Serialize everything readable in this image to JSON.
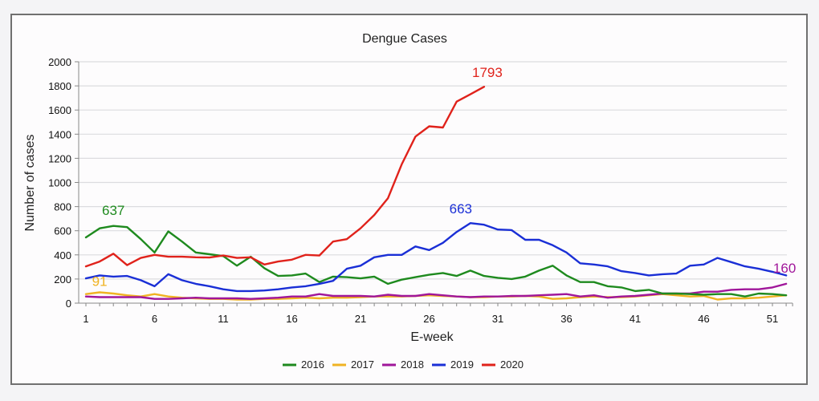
{
  "chart_data": {
    "type": "line",
    "title": "Dengue Cases",
    "xlabel": "E-week",
    "ylabel": "Number of cases",
    "ylim": [
      0,
      2000
    ],
    "yticks": [
      0,
      200,
      400,
      600,
      800,
      1000,
      1200,
      1400,
      1600,
      1800,
      2000
    ],
    "xlim": [
      1,
      52
    ],
    "xtick_labels": [
      {
        "week": 1,
        "label": "1"
      },
      {
        "week": 6,
        "label": "6"
      },
      {
        "week": 11,
        "label": "11"
      },
      {
        "week": 16,
        "label": "16"
      },
      {
        "week": 21,
        "label": "21"
      },
      {
        "week": 26,
        "label": "26"
      },
      {
        "week": 31,
        "label": "31"
      },
      {
        "week": 36,
        "label": "36"
      },
      {
        "week": 41,
        "label": "41"
      },
      {
        "week": 46,
        "label": "46"
      },
      {
        "week": 51,
        "label": "51"
      }
    ],
    "grid": true,
    "legend_position": "bottom",
    "series": [
      {
        "name": "2016",
        "color": "#1e8a1e",
        "start_week": 1,
        "values": [
          545,
          620,
          640,
          630,
          530,
          420,
          595,
          510,
          420,
          405,
          390,
          310,
          385,
          290,
          225,
          230,
          245,
          175,
          220,
          215,
          205,
          220,
          160,
          195,
          215,
          235,
          250,
          225,
          270,
          225,
          210,
          200,
          220,
          270,
          310,
          230,
          175,
          175,
          140,
          130,
          100,
          110,
          80,
          80,
          75,
          70,
          75,
          75,
          55,
          80,
          75,
          65
        ],
        "annotation": {
          "week": 3,
          "value": 637,
          "text": "637"
        }
      },
      {
        "name": "2017",
        "color": "#f0b323",
        "start_week": 1,
        "values": [
          75,
          90,
          80,
          65,
          55,
          75,
          55,
          45,
          40,
          35,
          35,
          30,
          30,
          35,
          35,
          40,
          45,
          40,
          45,
          45,
          50,
          55,
          55,
          55,
          60,
          65,
          60,
          55,
          50,
          50,
          55,
          55,
          60,
          55,
          35,
          40,
          50,
          55,
          50,
          50,
          55,
          65,
          75,
          65,
          55,
          60,
          30,
          40,
          40,
          45,
          55,
          65
        ],
        "annotation": {
          "week": 2,
          "value": 91,
          "text": "91"
        }
      },
      {
        "name": "2018",
        "color": "#a0169a",
        "start_week": 1,
        "values": [
          55,
          50,
          50,
          50,
          50,
          35,
          35,
          40,
          45,
          40,
          40,
          40,
          35,
          40,
          45,
          55,
          55,
          75,
          60,
          60,
          60,
          55,
          70,
          60,
          60,
          75,
          65,
          55,
          50,
          55,
          55,
          60,
          60,
          65,
          70,
          75,
          55,
          65,
          45,
          55,
          60,
          70,
          80,
          80,
          80,
          95,
          95,
          110,
          115,
          115,
          130,
          160
        ],
        "annotation": {
          "week": 52,
          "value": 160,
          "text": "160"
        }
      },
      {
        "name": "2019",
        "color": "#1a2fd6",
        "start_week": 1,
        "values": [
          205,
          230,
          220,
          225,
          190,
          140,
          240,
          190,
          160,
          140,
          115,
          100,
          100,
          105,
          115,
          130,
          140,
          160,
          185,
          285,
          310,
          380,
          400,
          400,
          470,
          440,
          500,
          590,
          663,
          650,
          610,
          605,
          525,
          525,
          480,
          420,
          330,
          320,
          305,
          265,
          250,
          230,
          240,
          245,
          310,
          320,
          375,
          340,
          305,
          285,
          260,
          230
        ],
        "annotation": {
          "week": 29,
          "value": 663,
          "text": "663"
        }
      },
      {
        "name": "2020",
        "color": "#e0221b",
        "start_week": 1,
        "values": [
          305,
          345,
          410,
          315,
          375,
          400,
          385,
          385,
          380,
          378,
          395,
          375,
          380,
          320,
          345,
          360,
          400,
          395,
          510,
          530,
          620,
          730,
          870,
          1150,
          1380,
          1465,
          1455,
          1670,
          1730,
          1793
        ],
        "annotation": {
          "week": 30,
          "value": 1793,
          "text": "1793"
        }
      }
    ]
  }
}
